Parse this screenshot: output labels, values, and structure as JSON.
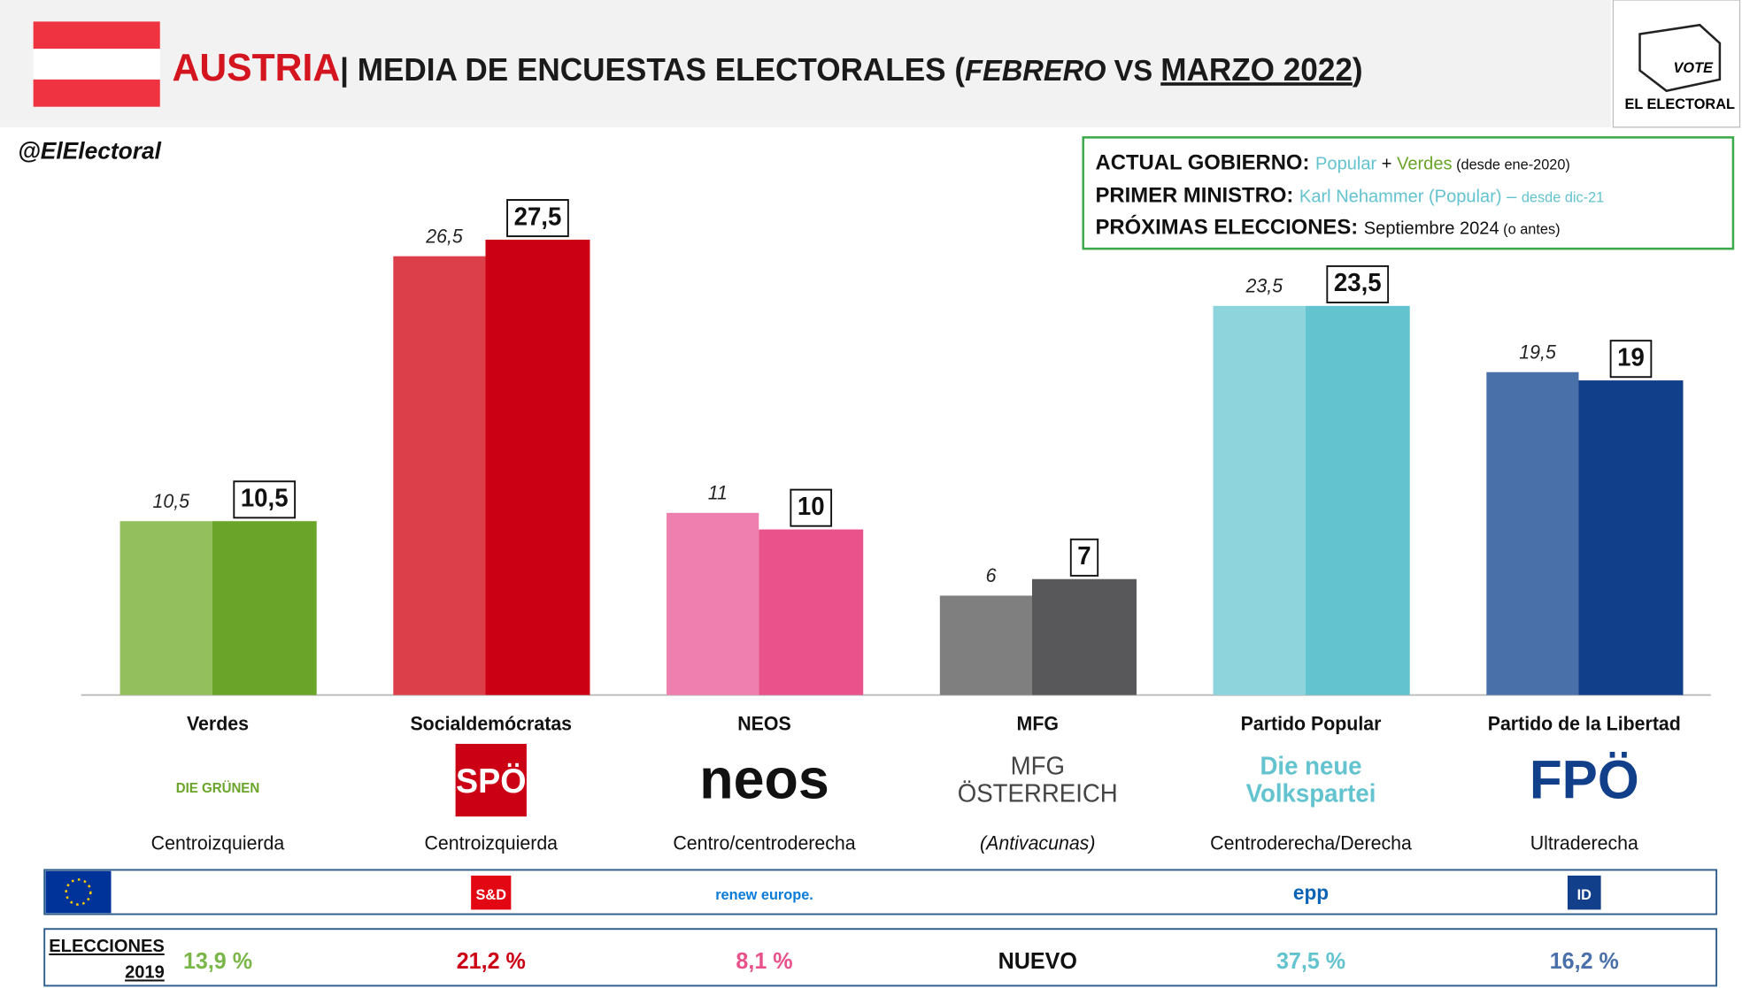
{
  "header": {
    "country": "AUSTRIA",
    "title_prefix": "| MEDIA DE ENCUESTAS ELECTORALES (",
    "title_mid": " VS ",
    "title_suffix": ")",
    "handle": "@ElElectoral",
    "logo_vote": "VOTE",
    "logo_name": "EL ELECTORAL"
  },
  "info": {
    "gov_label": "ACTUAL GOBIERNO: ",
    "gov_p1": "Popular",
    "gov_plus": " + ",
    "gov_p2": "Verdes",
    "gov_since": " (desde ene-2020)",
    "pm_label": "PRIMER MINISTRO: ",
    "pm_name": "Karl Nehammer (Popular) – ",
    "pm_since": "desde dic-21",
    "next_label": "PRÓXIMAS ELECCIONES: ",
    "next_date": "Septiembre 2024",
    "next_note": " (o antes)"
  },
  "chart_data": {
    "type": "bar",
    "categories": [
      "Verdes",
      "Socialdemócratas",
      "NEOS",
      "MFG",
      "Partido Popular",
      "Partido de la Libertad"
    ],
    "series": [
      {
        "name": "FEBRERO",
        "colors": [
          "#93bf5c",
          "#dc3f4a",
          "#ef7fae",
          "#7f7f7f",
          "#8dd4dd",
          "#4a70aa"
        ],
        "values": [
          10.5,
          26.5,
          11,
          6,
          23.5,
          19.5
        ],
        "value_labels": [
          "10,5",
          "26,5",
          "11",
          "6",
          "23,5",
          "19,5"
        ]
      },
      {
        "name": "MARZO 2022",
        "colors": [
          "#6aa428",
          "#cc0015",
          "#ea528b",
          "#58585a",
          "#63c3cf",
          "#123f8a"
        ],
        "values": [
          10.5,
          27.5,
          10,
          7,
          23.5,
          19
        ],
        "value_labels": [
          "10,5",
          "27,5",
          "10",
          "7",
          "23,5",
          "19"
        ]
      }
    ]
  },
  "parties": [
    {
      "logo": [
        "DIE GRÜNEN"
      ],
      "ideology": "Centroizquierda",
      "eu_group": "",
      "election": "13,9 %",
      "election_color": "#7ab648"
    },
    {
      "logo": [
        "SPÖ"
      ],
      "ideology": "Centroizquierda",
      "eu_group": "S&D",
      "election": "21,2 %",
      "election_color": "#cc0015"
    },
    {
      "logo": [
        "neos"
      ],
      "ideology": "Centro/centroderecha",
      "eu_group": "renew europe.",
      "election": "8,1 %",
      "election_color": "#e8528b"
    },
    {
      "logo": [
        "MFG",
        "ÖSTERREICH"
      ],
      "ideology": "(Antivacunas)",
      "eu_group": "",
      "election": "NUEVO",
      "election_color": "#111111"
    },
    {
      "logo": [
        "Die neue",
        "Volkspartei"
      ],
      "ideology": "Centroderecha/Derecha",
      "eu_group": "epp",
      "election": "37,5 %",
      "election_color": "#63c3cf"
    },
    {
      "logo": [
        "FPÖ"
      ],
      "ideology": "Ultraderecha",
      "eu_group": "ID",
      "election": "16,2 %",
      "election_color": "#4a70aa"
    }
  ],
  "elections_label": [
    "ELECCIONES",
    "2019"
  ]
}
